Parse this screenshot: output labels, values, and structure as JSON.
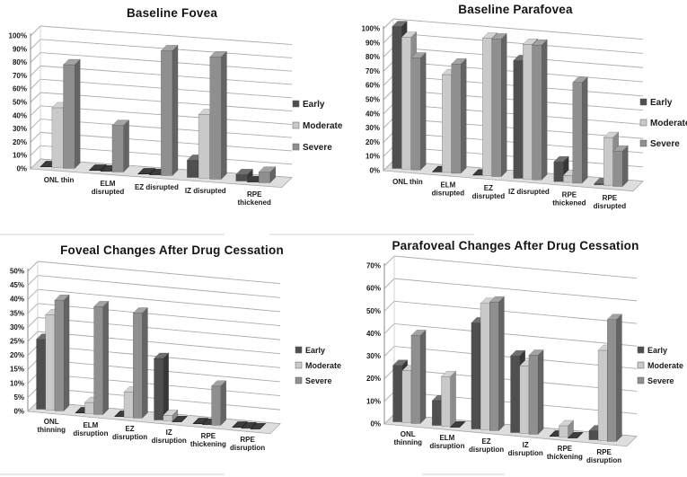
{
  "page": {
    "background": "#ffffff",
    "text_color": "#1a1a1a"
  },
  "series_colors": {
    "Early": "#4f4f4f",
    "Moderate": "#c9c9c9",
    "Severe": "#8f8f8f"
  },
  "grid_color": "#ababab",
  "zero_bar_color": "#3d3d3d",
  "chart_data": [
    {
      "type": "bar",
      "style": "3d-clustered-column",
      "title": "Baseline Fovea",
      "categories": [
        "ONL thin",
        "ELM\ndisrupted",
        "EZ disrupted",
        "IZ disrupted",
        "RPE\nthickened"
      ],
      "series": [
        {
          "name": "Early",
          "values": [
            0,
            0,
            0,
            13,
            5
          ]
        },
        {
          "name": "Moderate",
          "values": [
            45,
            0,
            0,
            48,
            0
          ]
        },
        {
          "name": "Severe",
          "values": [
            78,
            35,
            94,
            92,
            8
          ]
        }
      ],
      "ylim": [
        0,
        100
      ],
      "ytick_step": 10,
      "ytick_format": "percent",
      "grid": true,
      "legend_position": "right",
      "legend": [
        "Early",
        "Moderate",
        "Severe"
      ]
    },
    {
      "type": "bar",
      "style": "3d-clustered-column",
      "title": "Baseline Parafovea",
      "categories": [
        "ONL thin",
        "ELM\ndisrupted",
        "EZ\ndisrupted",
        "IZ disrupted",
        "RPE\nthickened",
        "RPE\ndisrupted"
      ],
      "series": [
        {
          "name": "Early",
          "values": [
            100,
            0,
            0,
            83,
            14,
            1
          ]
        },
        {
          "name": "Moderate",
          "values": [
            93,
            69,
            97,
            95,
            5,
            34
          ]
        },
        {
          "name": "Severe",
          "values": [
            79,
            77,
            97,
            95,
            71,
            25
          ]
        }
      ],
      "ylim": [
        0,
        100
      ],
      "ytick_step": 10,
      "ytick_format": "percent",
      "grid": true,
      "legend_position": "right",
      "legend": [
        "Early",
        "Moderate",
        "Severe"
      ]
    },
    {
      "type": "bar",
      "style": "3d-clustered-column",
      "title": "Foveal Changes After Drug Cessation",
      "categories": [
        "ONL\nthinning",
        "ELM\ndisruption",
        "EZ\ndisruption",
        "IZ\ndisruption",
        "RPE\nthickening",
        "RPE\ndisruption"
      ],
      "series": [
        {
          "name": "Early",
          "values": [
            25,
            0,
            0,
            22,
            0,
            0
          ]
        },
        {
          "name": "Moderate",
          "values": [
            34,
            4,
            9,
            2,
            0,
            0
          ]
        },
        {
          "name": "Severe",
          "values": [
            39.5,
            38.5,
            37.5,
            0,
            14,
            0
          ]
        }
      ],
      "ylim": [
        0,
        50
      ],
      "ytick_step": 5,
      "ytick_format": "percent",
      "grid": true,
      "legend_position": "right",
      "legend": [
        "Early",
        "Moderate",
        "Severe"
      ]
    },
    {
      "type": "bar",
      "style": "3d-clustered-column",
      "title": "Parafoveal Changes After Drug Cessation",
      "categories": [
        "ONL\nthinning",
        "ELM\ndisruption",
        "EZ\ndisruption",
        "IZ\ndisruption",
        "RPE\nthickening",
        "RPE\ndisruption"
      ],
      "series": [
        {
          "name": "Early",
          "values": [
            25,
            11,
            47,
            34,
            0,
            4
          ]
        },
        {
          "name": "Moderate",
          "values": [
            23,
            22,
            56,
            30,
            5,
            40
          ]
        },
        {
          "name": "Severe",
          "values": [
            39,
            0,
            57,
            35,
            0,
            54
          ]
        }
      ],
      "ylim": [
        0,
        70
      ],
      "ytick_step": 10,
      "ytick_format": "percent",
      "grid": true,
      "legend_position": "right",
      "legend": [
        "Early",
        "Moderate",
        "Severe"
      ]
    }
  ]
}
